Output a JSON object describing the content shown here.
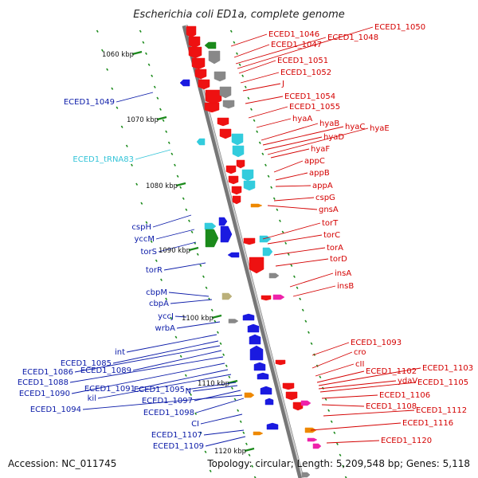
{
  "title": "Escherichia coli ED1a, complete genome",
  "footer": {
    "accession": "Accession: NC_011745",
    "summary": "Topology: circular; Length: 5,209,548 bp; Genes: 5,118"
  },
  "colors": {
    "forward": "#ee1111",
    "reverse": "#1a1ae0",
    "rna": "#33ccdd",
    "grey": "#888888",
    "green": "#1b8a1b",
    "orange": "#ee8800",
    "magenta": "#ee22aa",
    "olive": "#bbb07a"
  },
  "kbp_ticks": [
    "1060 kbp",
    "1070 kbp",
    "1080 kbp",
    "1090 kbp",
    "1100 kbp",
    "1110 kbp",
    "1120 kbp"
  ],
  "labels_right": [
    "ECED1_1046",
    "ECED1_1047",
    "ECED1_1048",
    "ECED1_1050",
    "ECED1_1051",
    "ECED1_1052",
    "J",
    "ECED1_1054",
    "ECED1_1055",
    "hyaA",
    "hyaB",
    "hyaC",
    "hyaD",
    "hyaE",
    "hyaF",
    "appC",
    "appB",
    "appA",
    "cspG",
    "gnsA",
    "torT",
    "torC",
    "torA",
    "torD",
    "insA",
    "insB",
    "ECED1_1093",
    "cro",
    "cII",
    "ECED1_1102",
    "ECED1_1103",
    "ydaV",
    "ECED1_1105",
    "ECED1_1106",
    "ECED1_1108",
    "ECED1_1112",
    "ECED1_1116",
    "ECED1_1120"
  ],
  "labels_left": [
    "ECED1_1049",
    "ECED1_tRNA83",
    "cspH",
    "yccM",
    "torS",
    "torR",
    "cbpM",
    "cbpA",
    "yccJ",
    "wrbA",
    "int",
    "ECED1_1085",
    "ECED1_1086",
    "ECED1_1089",
    "ECED1_1088",
    "ECED1_1090",
    "ECED1_1091",
    "kil",
    "ECED1_1095",
    "N",
    "ECED1_1097",
    "ECED1_1094",
    "ECED1_1098",
    "CI",
    "ECED1_1107",
    "ECED1_1109"
  ]
}
